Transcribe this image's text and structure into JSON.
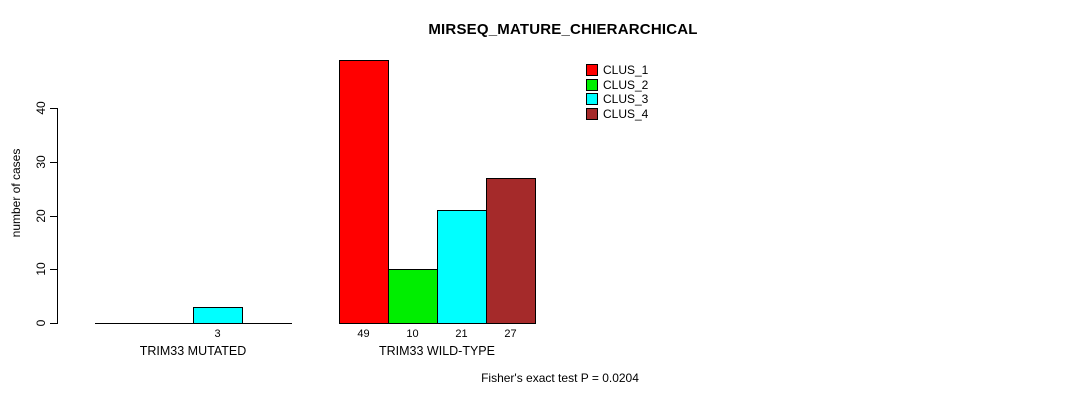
{
  "chart_data": {
    "type": "bar",
    "title": "MIRSEQ_MATURE_CHIERARCHICAL",
    "xlabel": "",
    "ylabel": "number of cases",
    "ylim": [
      0,
      49
    ],
    "yticks": [
      0,
      10,
      20,
      30,
      40
    ],
    "grid": false,
    "legend_position": "top-right",
    "categories": [
      "TRIM33 MUTATED",
      "TRIM33 WILD-TYPE"
    ],
    "series": [
      {
        "name": "CLUS_1",
        "color": "#FF0000",
        "values": [
          0,
          49
        ]
      },
      {
        "name": "CLUS_2",
        "color": "#00EE00",
        "values": [
          0,
          10
        ]
      },
      {
        "name": "CLUS_3",
        "color": "#00FFFF",
        "values": [
          3,
          21
        ]
      },
      {
        "name": "CLUS_4",
        "color": "#A52A2A",
        "values": [
          0,
          27
        ]
      }
    ],
    "bar_labels": [
      [
        "",
        "",
        "3",
        ""
      ],
      [
        "49",
        "10",
        "21",
        "27"
      ]
    ],
    "annotation": "Fisher's exact test P = 0.0204"
  }
}
